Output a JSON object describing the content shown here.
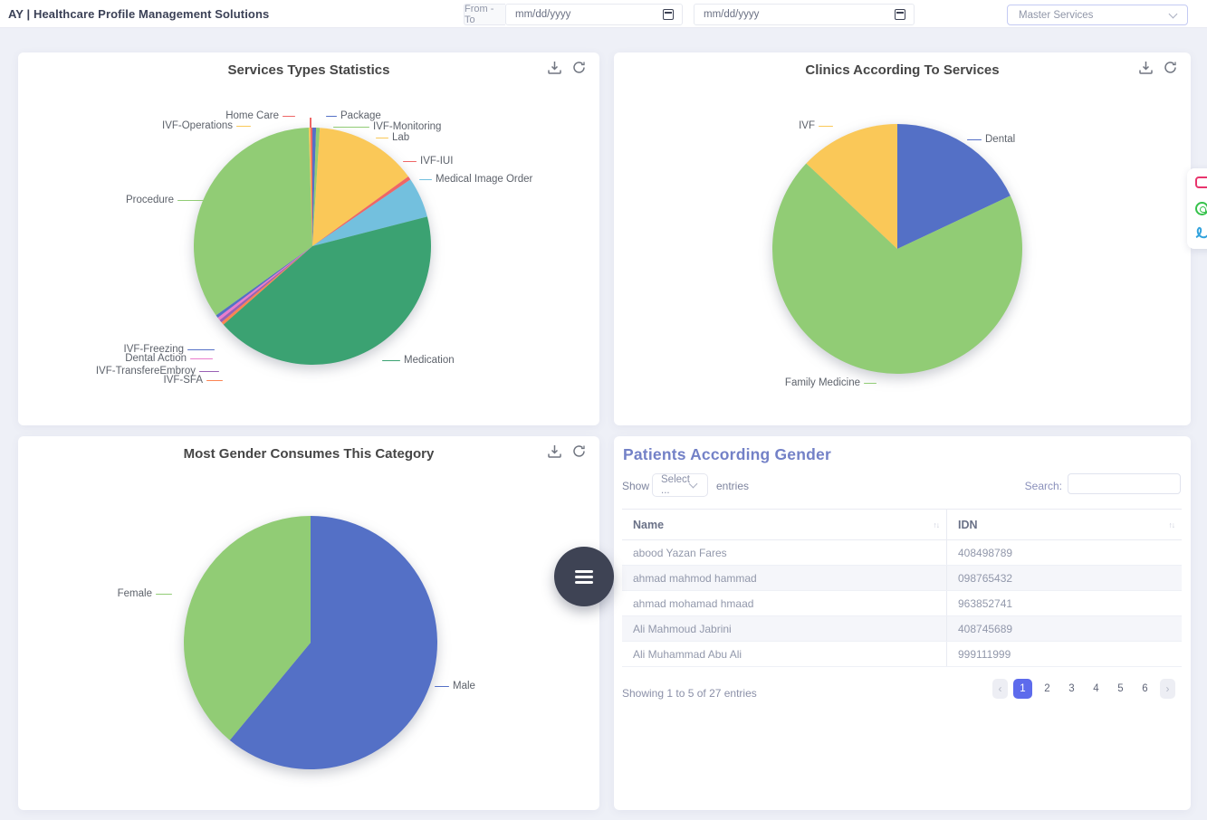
{
  "colors": {
    "accent": "#5d6bec",
    "panel_title": "#7381c7",
    "fab_background": "#3e4354",
    "page_background": "#eef0f7",
    "chart_title": "#464646"
  },
  "icons": {
    "calendar": "calendar",
    "chevron_down": "chevron-down",
    "download": "download",
    "refresh": "refresh",
    "hamburger": "hamburger-menu",
    "sort_asc": "↑",
    "sort_desc": "↓",
    "prev": "‹",
    "next": "›",
    "side_widget": [
      "video",
      "whatsapp",
      "signature"
    ]
  },
  "topbar": {
    "brand": "AY | Healthcare Profile Management Solutions",
    "from_to_label": "From - To",
    "date_from_placeholder": "mm/dd/yyyy",
    "date_to_placeholder": "mm/dd/yyyy",
    "master_select_value": "Master Services"
  },
  "chart_data": [
    {
      "type": "pie",
      "title": "Services Types Statistics",
      "labels": [
        "Package",
        "IVF-Monitoring",
        "Lab",
        "IVF-IUI",
        "Medical Image Order",
        "Medication",
        "IVF-SFA",
        "IVF-TransfereEmbroy",
        "Dental Action",
        "IVF-Freezing",
        "Procedure",
        "IVF-Operations",
        "Home Care"
      ],
      "values": [
        0.5,
        0.5,
        14,
        0.5,
        5.5,
        42.5,
        0.4,
        0.4,
        0.4,
        0.4,
        34.4,
        0.25,
        0.25
      ],
      "colors": [
        "#5470c6",
        "#91cc75",
        "#fac858",
        "#ee6666",
        "#73c0de",
        "#3ba272",
        "#fc8452",
        "#9a60b4",
        "#ea7ccc",
        "#5470c6",
        "#91cc75",
        "#fac858",
        "#ee6666"
      ],
      "legend": "none",
      "label_style": "outside-leader-lines",
      "start_angle_deg": 90,
      "clockwise": true
    },
    {
      "type": "pie",
      "title": "Clinics According To Services",
      "labels": [
        "Dental",
        "Family Medicine",
        "IVF"
      ],
      "values": [
        18,
        69,
        13
      ],
      "colors": [
        "#5470c6",
        "#91cc75",
        "#fac858"
      ],
      "legend": "none",
      "label_style": "outside-leader-lines",
      "start_angle_deg": 90,
      "clockwise": true
    },
    {
      "type": "pie",
      "title": "Most Gender Consumes This Category",
      "labels": [
        "Male",
        "Female"
      ],
      "values": [
        61,
        39
      ],
      "colors": [
        "#5470c6",
        "#91cc75"
      ],
      "legend": "none",
      "label_style": "outside-leader-lines",
      "start_angle_deg": 90,
      "clockwise": true
    }
  ],
  "patients": {
    "title": "Patients According Gender",
    "show_label": "Show",
    "page_size_value": "Select ...",
    "entries_label": "entries",
    "search_label": "Search:",
    "search_value": "",
    "columns": [
      "Name",
      "IDN"
    ],
    "rows": [
      {
        "name": "abood Yazan Fares",
        "idn": "408498789"
      },
      {
        "name": "ahmad mahmod hammad",
        "idn": "098765432"
      },
      {
        "name": "ahmad mohamad hmaad",
        "idn": "963852741"
      },
      {
        "name": "Ali Mahmoud Jabrini",
        "idn": "408745689"
      },
      {
        "name": "Ali Muhammad Abu Ali",
        "idn": "999111999"
      }
    ],
    "footer_info": "Showing 1 to 5 of 27 entries",
    "pagination": {
      "active_page": "1",
      "pages": [
        "1",
        "2",
        "3",
        "4",
        "5",
        "6"
      ]
    }
  }
}
